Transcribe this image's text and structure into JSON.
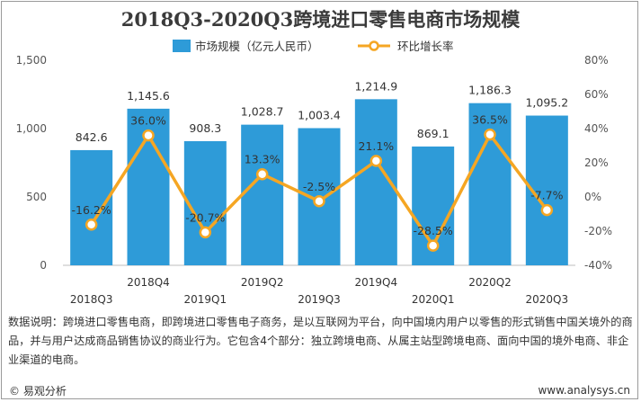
{
  "title": "2018Q3-2020Q3跨境进口零售电商市场规模",
  "note": "数据说明：跨境进口零售电商，即跨境进口零售电子商务，是以互联网为平台，向中国境内用户以零售的形式销售中国关境外的商品，并与用户达成商品销售协议的商业行为。它包含4个部分：独立跨境电商、从属主站型跨境电商、面向中国的境外电商、非企业渠道的电商。",
  "footer": {
    "left": "© 易观分析",
    "right": "www.analysys.cn"
  },
  "colors": {
    "bar": "#2e9bd8",
    "line": "#f5a623",
    "marker_fill": "#ffffff"
  },
  "chart_data": {
    "type": "bar",
    "categories": [
      "2018Q3",
      "2018Q4",
      "2019Q1",
      "2019Q2",
      "2019Q3",
      "2019Q4",
      "2020Q1",
      "2020Q2",
      "2020Q3"
    ],
    "series": [
      {
        "name": "市场规模（亿元人民币）",
        "type": "bar",
        "axis": "left",
        "values": [
          842.6,
          1145.6,
          908.3,
          1028.7,
          1003.4,
          1214.9,
          869.1,
          1186.3,
          1095.2
        ],
        "labels": [
          "842.6",
          "1,145.6",
          "908.3",
          "1,028.7",
          "1,003.4",
          "1,214.9",
          "869.1",
          "1,186.3",
          "1,095.2"
        ]
      },
      {
        "name": "环比增长率",
        "type": "line",
        "axis": "right",
        "values": [
          -16.2,
          36.0,
          -20.7,
          13.3,
          -2.5,
          21.1,
          -28.5,
          36.5,
          -7.7
        ],
        "labels": [
          "-16.2%",
          "36.0%",
          "-20.7%",
          "13.3%",
          "-2.5%",
          "21.1%",
          "-28.5%",
          "36.5%",
          "-7.7%"
        ]
      }
    ],
    "y_left": {
      "ylim": [
        0,
        1500
      ],
      "ticks": [
        "0",
        "500",
        "1,000",
        "1,500"
      ],
      "tick_values": [
        0,
        500,
        1000,
        1500
      ]
    },
    "y_right": {
      "ylim": [
        -40,
        80
      ],
      "ticks": [
        "-40%",
        "-20%",
        "0%",
        "20%",
        "40%",
        "60%",
        "80%"
      ],
      "tick_values": [
        -40,
        -20,
        0,
        20,
        40,
        60,
        80
      ]
    },
    "legend_position": "top-center"
  }
}
